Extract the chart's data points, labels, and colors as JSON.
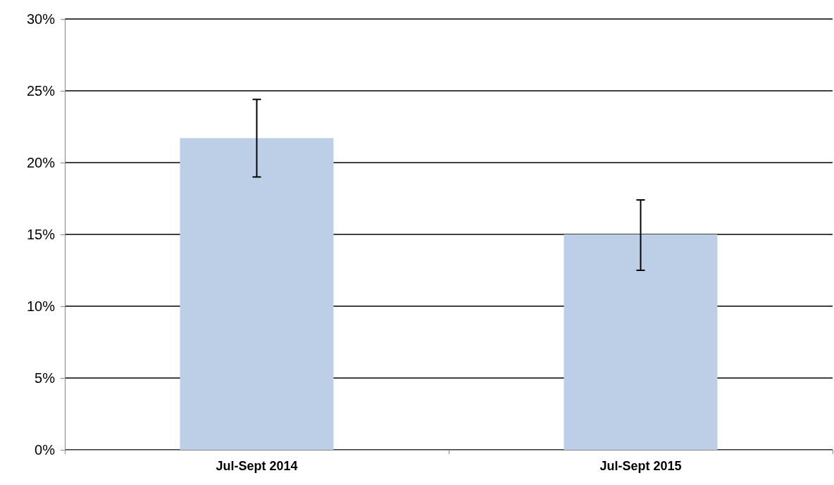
{
  "chart_data": {
    "type": "bar",
    "categories": [
      "Jul-Sept 2014",
      "Jul-Sept 2015"
    ],
    "values": [
      21.7,
      15.0
    ],
    "color": "#bccfe7",
    "errors": [
      [
        19.0,
        24.4
      ],
      [
        12.5,
        17.4
      ]
    ],
    "ylim": [
      0,
      30
    ],
    "yticks": [
      {
        "value": 0,
        "label": "0%"
      },
      {
        "value": 5,
        "label": "5%"
      },
      {
        "value": 10,
        "label": "10%"
      },
      {
        "value": 15,
        "label": "15%"
      },
      {
        "value": 20,
        "label": "20%"
      },
      {
        "value": 25,
        "label": "25%"
      },
      {
        "value": 30,
        "label": "30%"
      }
    ],
    "grid": "y"
  }
}
